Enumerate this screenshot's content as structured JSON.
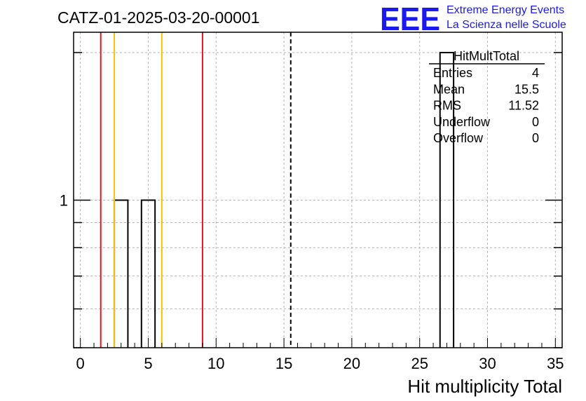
{
  "header": {
    "run_title": "CATZ-01-2025-03-20-00001",
    "logo_mark": "EEE",
    "logo_line1": "Extreme Energy Events",
    "logo_line2": "La Scienza nelle Scuole"
  },
  "stats_box": {
    "title": "HitMultTotal",
    "rows": [
      {
        "label": "Entries",
        "value": "4"
      },
      {
        "label": "Mean",
        "value": "15.5"
      },
      {
        "label": "RMS",
        "value": "11.52"
      },
      {
        "label": "Underflow",
        "value": "0"
      },
      {
        "label": "Overflow",
        "value": "0"
      }
    ]
  },
  "chart_data": {
    "type": "bar",
    "histogram": "step",
    "xlabel": "Hit multiplicity Total",
    "ylabel": "",
    "xlim": [
      -0.5,
      35.5
    ],
    "ylim": [
      0.5,
      2.2
    ],
    "y_scale": "log",
    "grid": true,
    "x_ticks": [
      0,
      5,
      10,
      15,
      20,
      25,
      30,
      35
    ],
    "y_tick_labels": [
      {
        "value": 1,
        "label": "1"
      }
    ],
    "bins": [
      {
        "low": 2.5,
        "high": 3.5,
        "count": 1
      },
      {
        "low": 4.5,
        "high": 5.5,
        "count": 1
      },
      {
        "low": 26.5,
        "high": 27.5,
        "count": 2
      }
    ],
    "vertical_lines": [
      {
        "x": 1.5,
        "color": "#e8141e",
        "style": "solid"
      },
      {
        "x": 2.5,
        "color": "#f5c400",
        "style": "solid"
      },
      {
        "x": 6.0,
        "color": "#f5c400",
        "style": "solid"
      },
      {
        "x": 9.0,
        "color": "#e8141e",
        "style": "solid"
      },
      {
        "x": 15.5,
        "color": "#000000",
        "style": "dashed"
      }
    ]
  }
}
